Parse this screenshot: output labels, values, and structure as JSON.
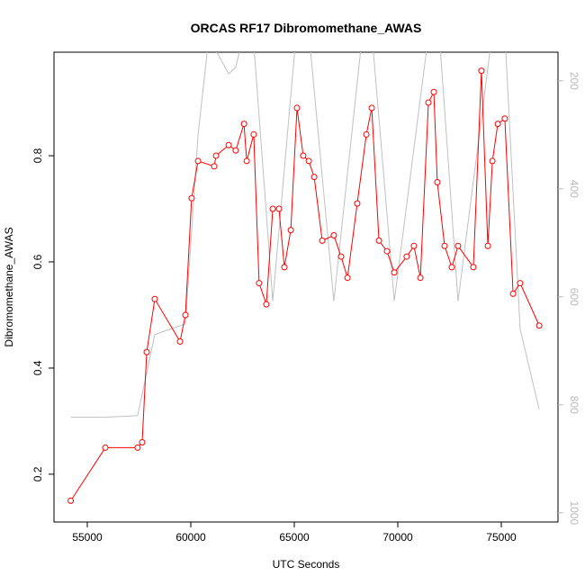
{
  "chart_data": {
    "type": "line",
    "title": "ORCAS RF17 Dibromomethane_AWAS",
    "xlabel": "UTC Seconds",
    "ylabel": "Dibromomethane_AWAS",
    "xlim": [
      53391,
      77739
    ],
    "ylim": [
      0.11,
      0.995
    ],
    "y2lim": [
      1017,
      147
    ],
    "xticks": [
      55000,
      60000,
      65000,
      70000,
      75000
    ],
    "yticks": [
      0.2,
      0.4,
      0.6,
      0.8
    ],
    "y2ticks": [
      200,
      400,
      600,
      800,
      1000
    ],
    "series": [
      {
        "color": "#ff0000",
        "x": [
          54200,
          55870,
          57430,
          57650,
          57870,
          58260,
          59480,
          59740,
          60040,
          60350,
          61130,
          61220,
          61830,
          62170,
          62570,
          62700,
          63040,
          63300,
          63650,
          63960,
          64260,
          64520,
          64830,
          65130,
          65430,
          65700,
          65960,
          66350,
          66910,
          67260,
          67570,
          68040,
          68480,
          68740,
          69090,
          69480,
          69830,
          70430,
          70780,
          71090,
          71480,
          71740,
          71910,
          72260,
          72610,
          72910,
          73650,
          74040,
          74350,
          74570,
          74830,
          75170,
          75570,
          75910,
          76830
        ],
        "values": [
          0.15,
          0.25,
          0.25,
          0.26,
          0.43,
          0.53,
          0.45,
          0.5,
          0.72,
          0.79,
          0.78,
          0.8,
          0.82,
          0.81,
          0.86,
          0.79,
          0.84,
          0.56,
          0.52,
          0.7,
          0.7,
          0.59,
          0.66,
          0.89,
          0.8,
          0.79,
          0.76,
          0.64,
          0.65,
          0.61,
          0.57,
          0.71,
          0.84,
          0.89,
          0.64,
          0.62,
          0.58,
          0.61,
          0.63,
          0.57,
          0.9,
          0.92,
          0.75,
          0.63,
          0.59,
          0.63,
          0.59,
          0.96,
          0.63,
          0.79,
          0.86,
          0.87,
          0.54,
          0.56,
          0.48
        ]
      },
      {
        "color": "#c0c0c0",
        "axis": "y2",
        "x": [
          54200,
          55870,
          57430,
          58260,
          59740,
          60350,
          60870,
          61830,
          62170,
          62570,
          63000,
          63960,
          65100,
          65700,
          66910,
          68300,
          68740,
          69830,
          71500,
          72000,
          72910,
          74570,
          75170,
          75910,
          76830
        ],
        "values": [
          823,
          823,
          820,
          670,
          650,
          300,
          120,
          187,
          175,
          110,
          110,
          608,
          110,
          110,
          608,
          110,
          110,
          608,
          110,
          110,
          608,
          110,
          110,
          660,
          808
        ]
      }
    ]
  }
}
